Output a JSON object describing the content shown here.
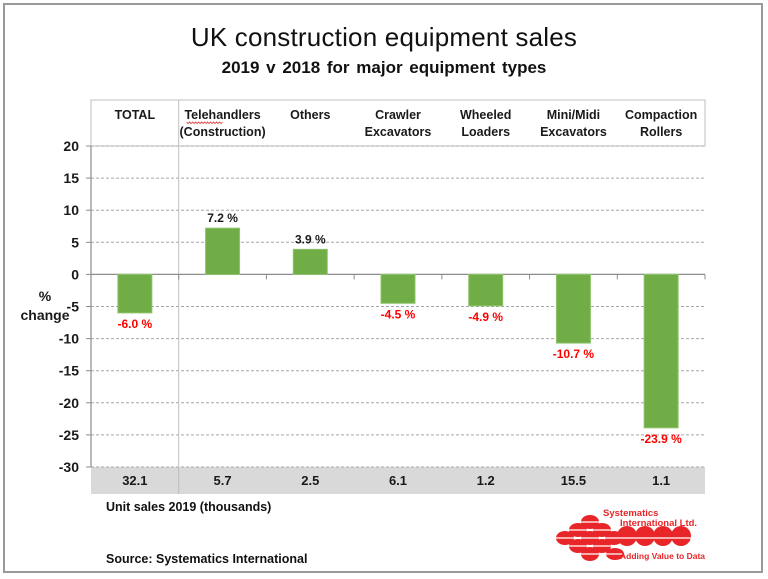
{
  "chart_data": {
    "type": "bar",
    "title": "UK construction equipment sales",
    "subtitle": "2019  v  2018  for major equipment types",
    "xlabel": "",
    "ylabel": "% change",
    "ylabel_lines": [
      "%",
      "change"
    ],
    "ylim": [
      -30,
      20
    ],
    "yticks": [
      20,
      15,
      10,
      5,
      0,
      -5,
      -10,
      -15,
      -20,
      -25,
      -30
    ],
    "grid": true,
    "categories": [
      [
        "TOTAL"
      ],
      [
        "Telehandlers",
        "(Construction)"
      ],
      [
        "Others"
      ],
      [
        "Crawler",
        "Excavators"
      ],
      [
        "Wheeled",
        "Loaders"
      ],
      [
        "Mini/Midi",
        "Excavators"
      ],
      [
        "Compaction",
        "Rollers"
      ]
    ],
    "values": [
      -6.0,
      7.2,
      3.9,
      -4.5,
      -4.9,
      -10.7,
      -23.9
    ],
    "data_labels": [
      "-6.0 %",
      "7.2 %",
      "3.9 %",
      "-4.5 %",
      "-4.9 %",
      "-10.7 %",
      "-23.9 %"
    ],
    "unit_sales_2019_thousands": [
      "32.1",
      "5.7",
      "2.5",
      "6.1",
      "1.2",
      "15.5",
      "1.1"
    ],
    "unit_sales_label": "Unit sales 2019  (thousands)",
    "colors": {
      "bar": "#70ad47",
      "bar_edge": "#8fc46a",
      "negative_label": "#ff0000",
      "positive_label": "#1a1a1a",
      "sales_row_bg": "#d9d9d9",
      "grid": "#a6a6a6"
    }
  },
  "source": "Source: Systematics International",
  "logo": {
    "line1": "Systematics",
    "line2": "International Ltd.",
    "tagline": "Adding Value to Data",
    "color": "#e8262a"
  }
}
